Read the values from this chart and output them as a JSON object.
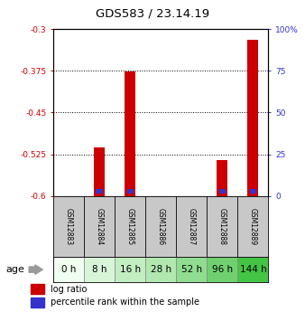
{
  "title": "GDS583 / 23.14.19",
  "samples": [
    "GSM12883",
    "GSM12884",
    "GSM12885",
    "GSM12886",
    "GSM12887",
    "GSM12888",
    "GSM12889"
  ],
  "ages": [
    "0 h",
    "8 h",
    "16 h",
    "28 h",
    "52 h",
    "96 h",
    "144 h"
  ],
  "log_ratios": [
    null,
    -0.513,
    -0.376,
    null,
    null,
    -0.535,
    -0.32
  ],
  "percentile_ranks_pct": [
    null,
    8,
    7,
    null,
    null,
    9,
    10
  ],
  "ylim": [
    -0.6,
    -0.3
  ],
  "yticks": [
    -0.6,
    -0.525,
    -0.45,
    -0.375,
    -0.3
  ],
  "ytick_labels": [
    "-0.6",
    "-0.525",
    "-0.45",
    "-0.375",
    "-0.3"
  ],
  "right_ytick_pct": [
    0,
    25,
    50,
    75,
    100
  ],
  "right_ytick_labels": [
    "0",
    "25",
    "50",
    "75",
    "100%"
  ],
  "bar_color_log": "#cc0000",
  "bar_color_pct": "#3333cc",
  "bar_width": 0.35,
  "pct_bar_width": 0.22,
  "age_colors": [
    "#f0fff0",
    "#d8f5d8",
    "#c2eeC2",
    "#b0e8b0",
    "#90dc90",
    "#70d070",
    "#44c444"
  ],
  "label_color_left": "#cc0000",
  "label_color_right": "#3333cc",
  "background_samples": "#c8c8c8",
  "sample_font_size": 5.5,
  "age_font_size": 7.5,
  "title_fontsize": 9.5
}
